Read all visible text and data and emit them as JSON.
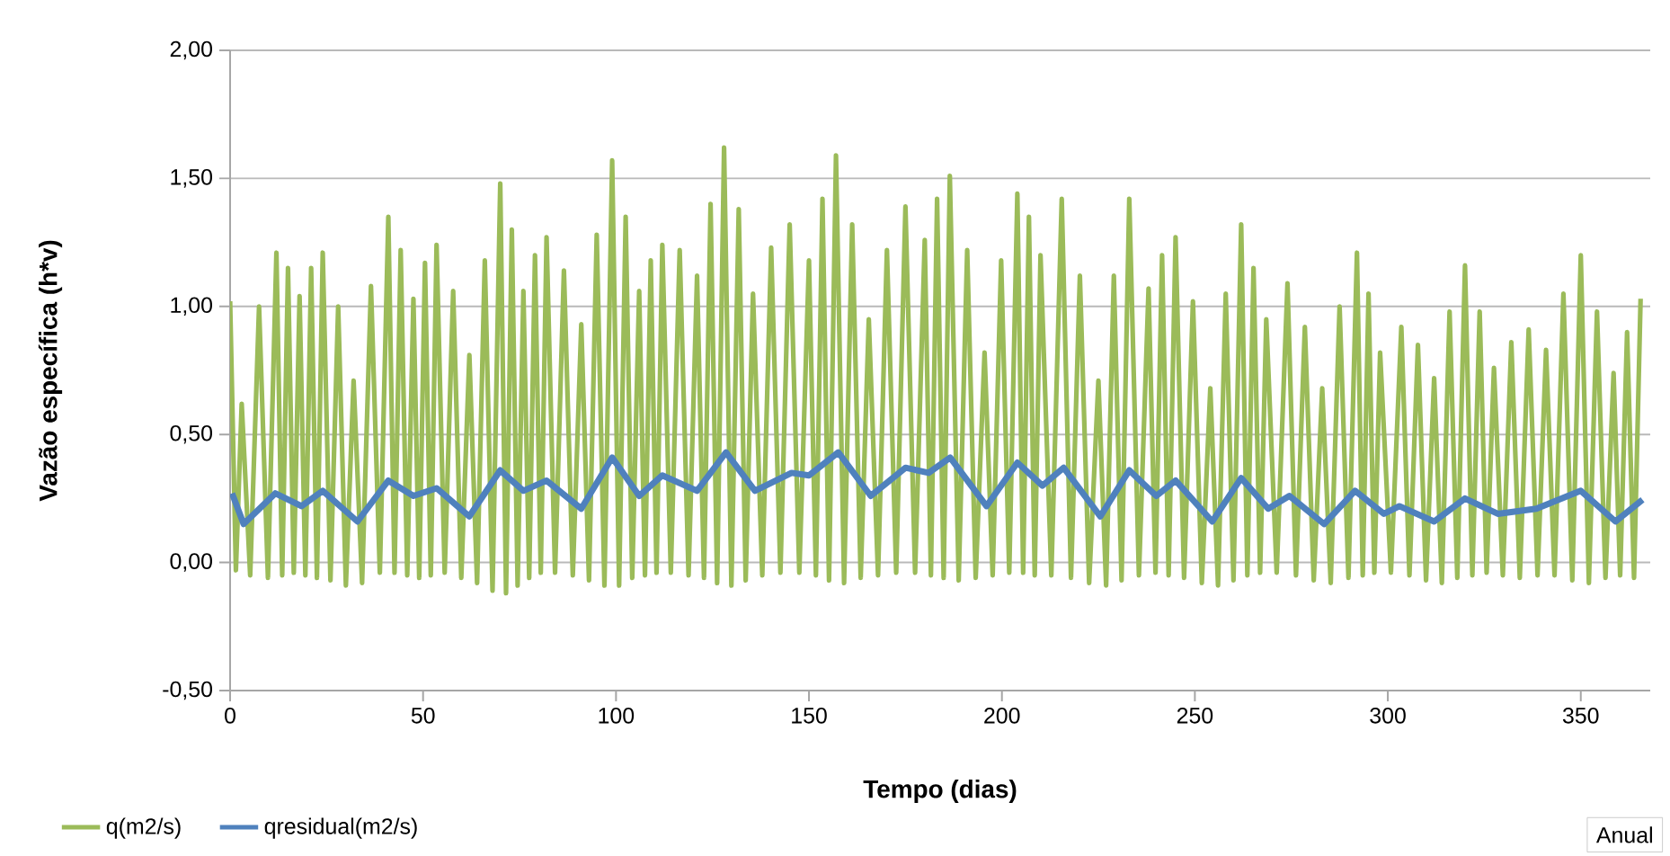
{
  "chart_data": {
    "type": "line",
    "xlabel": "Tempo (dias)",
    "ylabel": "Vazão específica  (h*v)",
    "xlim": [
      0,
      368
    ],
    "xticks": [
      0,
      50,
      100,
      150,
      200,
      250,
      300,
      350
    ],
    "ylim": [
      -0.5,
      2.0
    ],
    "yticks": [
      {
        "value": -0.5,
        "label": "-0,50"
      },
      {
        "value": 0,
        "label": "0,00"
      },
      {
        "value": 0.5,
        "label": "0,50"
      },
      {
        "value": 1.0,
        "label": "1,00"
      },
      {
        "value": 1.5,
        "label": "1,50"
      },
      {
        "value": 2.0,
        "label": "2,00"
      }
    ],
    "grid": "y",
    "legend": "bottom left",
    "annotations": [
      "Anual"
    ],
    "series": [
      {
        "name": "q(m2/s)",
        "color": "#9bbb59",
        "x": [
          0,
          1.5,
          3,
          5.2,
          7.5,
          9.8,
          12,
          13.5,
          15,
          16.5,
          18,
          19.5,
          21,
          22.5,
          24,
          26,
          28,
          30,
          32,
          34.2,
          36.5,
          38.8,
          41,
          42.6,
          44.2,
          45.9,
          47.5,
          49,
          50.5,
          52,
          53.5,
          55.6,
          57.8,
          59.9,
          62,
          64,
          66,
          68,
          70,
          71.5,
          73,
          74.5,
          76,
          77.5,
          79,
          80.5,
          82,
          84.2,
          86.5,
          88.8,
          91,
          93,
          95,
          97,
          99,
          100.8,
          102.5,
          104.2,
          106,
          107.5,
          109,
          110.5,
          112,
          114.2,
          116.5,
          118.8,
          121,
          122.8,
          124.5,
          126.2,
          128,
          129.9,
          131.8,
          133.6,
          135.5,
          137.9,
          140.2,
          142.6,
          145,
          147.5,
          150,
          151.8,
          153.5,
          155.2,
          157,
          159.1,
          161.2,
          163.4,
          165.5,
          167.9,
          170.2,
          172.6,
          175,
          177.5,
          180,
          181.6,
          183.2,
          184.9,
          186.5,
          188.8,
          191,
          193.2,
          195.5,
          197.6,
          199.8,
          201.9,
          204,
          205.5,
          207,
          208.5,
          210,
          212.8,
          215.5,
          217.9,
          220.2,
          222.6,
          225,
          227,
          229,
          231,
          233,
          235.5,
          238,
          239.8,
          241.5,
          243.2,
          245,
          247.2,
          249.5,
          251.8,
          254,
          256,
          258,
          260,
          262,
          263.6,
          265.2,
          266.9,
          268.5,
          271.2,
          274,
          276.2,
          278.5,
          280.8,
          283,
          285.2,
          287.5,
          289.8,
          292,
          293.5,
          295,
          296.5,
          298,
          300.8,
          303.5,
          305.6,
          307.8,
          309.9,
          312,
          314,
          316,
          318,
          320,
          321.9,
          323.8,
          325.6,
          327.5,
          329.8,
          332,
          334.2,
          336.5,
          338.8,
          341,
          343.2,
          345.5,
          347.8,
          350,
          352.1,
          354.2,
          356.4,
          358.5,
          360.2,
          362,
          363.8,
          365.5
        ],
        "values": [
          1.02,
          -0.03,
          0.62,
          -0.05,
          1.0,
          -0.06,
          1.21,
          -0.05,
          1.15,
          -0.04,
          1.04,
          -0.05,
          1.15,
          -0.06,
          1.21,
          -0.07,
          1.0,
          -0.09,
          0.71,
          -0.08,
          1.08,
          -0.04,
          1.35,
          -0.04,
          1.22,
          -0.05,
          1.03,
          -0.06,
          1.17,
          -0.05,
          1.24,
          -0.04,
          1.06,
          -0.06,
          0.81,
          -0.08,
          1.18,
          -0.11,
          1.48,
          -0.12,
          1.3,
          -0.09,
          1.06,
          -0.06,
          1.2,
          -0.04,
          1.27,
          -0.04,
          1.14,
          -0.05,
          0.93,
          -0.07,
          1.28,
          -0.09,
          1.57,
          -0.09,
          1.35,
          -0.06,
          1.06,
          -0.05,
          1.18,
          -0.04,
          1.24,
          -0.04,
          1.22,
          -0.05,
          1.12,
          -0.06,
          1.4,
          -0.08,
          1.62,
          -0.09,
          1.38,
          -0.07,
          1.05,
          -0.05,
          1.23,
          -0.04,
          1.32,
          -0.04,
          1.18,
          -0.05,
          1.42,
          -0.07,
          1.59,
          -0.08,
          1.32,
          -0.06,
          0.95,
          -0.05,
          1.22,
          -0.04,
          1.39,
          -0.04,
          1.26,
          -0.05,
          1.42,
          -0.06,
          1.51,
          -0.07,
          1.22,
          -0.06,
          0.82,
          -0.05,
          1.18,
          -0.04,
          1.44,
          -0.04,
          1.35,
          -0.05,
          1.2,
          -0.05,
          1.42,
          -0.06,
          1.12,
          -0.08,
          0.71,
          -0.09,
          1.12,
          -0.07,
          1.42,
          -0.05,
          1.07,
          -0.04,
          1.2,
          -0.05,
          1.27,
          -0.06,
          1.02,
          -0.08,
          0.68,
          -0.09,
          1.05,
          -0.07,
          1.32,
          -0.05,
          1.15,
          -0.04,
          0.95,
          -0.04,
          1.09,
          -0.05,
          0.92,
          -0.07,
          0.68,
          -0.08,
          1.0,
          -0.06,
          1.21,
          -0.05,
          1.05,
          -0.04,
          0.82,
          -0.04,
          0.92,
          -0.05,
          0.85,
          -0.07,
          0.72,
          -0.08,
          0.98,
          -0.06,
          1.16,
          -0.05,
          0.98,
          -0.04,
          0.76,
          -0.05,
          0.86,
          -0.06,
          0.91,
          -0.05,
          0.83,
          -0.05,
          1.05,
          -0.07,
          1.2,
          -0.08,
          0.98,
          -0.06,
          0.74,
          -0.05,
          0.9,
          -0.06,
          1.03
        ]
      },
      {
        "name": "qresidual(m2/s)",
        "color": "#4f81bd",
        "x": [
          0.5,
          3.5,
          11.7,
          18.5,
          24,
          33,
          41,
          47.5,
          53.5,
          62,
          70,
          76,
          82,
          91,
          99,
          106,
          112,
          121,
          128.5,
          136,
          145.5,
          150,
          157.6,
          166,
          175,
          181,
          186.6,
          196,
          204,
          210.5,
          216,
          225.5,
          233,
          240,
          245,
          254.5,
          262,
          269,
          274.5,
          283.5,
          291.5,
          299,
          303,
          312,
          320,
          328.5,
          338.5,
          350,
          359,
          366
        ],
        "values": [
          0.27,
          0.15,
          0.27,
          0.22,
          0.28,
          0.16,
          0.32,
          0.26,
          0.29,
          0.18,
          0.36,
          0.28,
          0.32,
          0.21,
          0.41,
          0.26,
          0.34,
          0.28,
          0.43,
          0.28,
          0.35,
          0.34,
          0.43,
          0.26,
          0.37,
          0.35,
          0.41,
          0.22,
          0.39,
          0.3,
          0.37,
          0.18,
          0.36,
          0.26,
          0.32,
          0.16,
          0.33,
          0.21,
          0.26,
          0.15,
          0.28,
          0.19,
          0.22,
          0.16,
          0.25,
          0.19,
          0.21,
          0.28,
          0.16,
          0.245
        ]
      }
    ]
  }
}
